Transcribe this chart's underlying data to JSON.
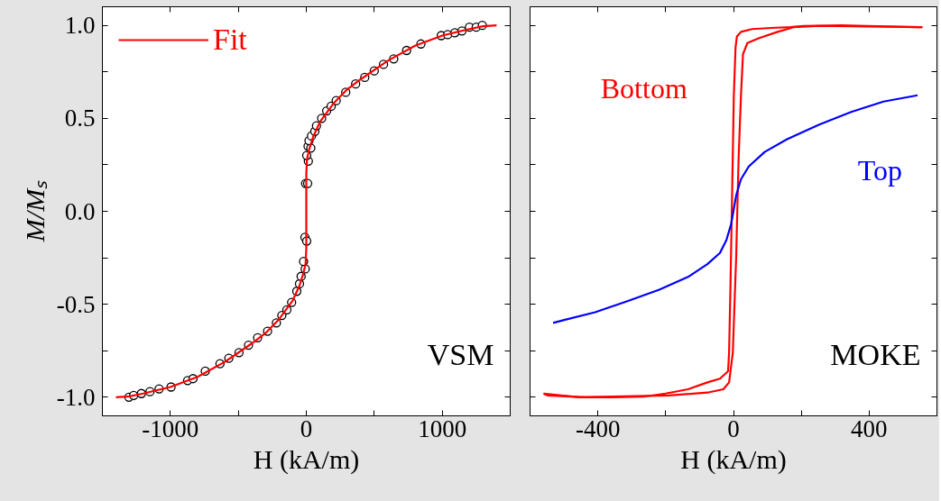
{
  "chart_data": [
    {
      "type": "scatter",
      "xlabel": "H (kA/m)",
      "ylabel": "M/Mₛ",
      "xlim": [
        -1500,
        1500
      ],
      "ylim": [
        -1.1,
        1.1
      ],
      "xticks": [
        -1000,
        {
          "value": -500,
          "label": null
        },
        0,
        {
          "value": 500,
          "label": null
        },
        1000
      ],
      "yticks": [
        {
          "value": -1.0,
          "label": "-1.0"
        },
        {
          "value": -0.75,
          "label": null
        },
        -0.5,
        {
          "value": -0.25,
          "label": null
        },
        {
          "value": 0.0,
          "label": "0.0"
        },
        {
          "value": 0.25,
          "label": null
        },
        0.5,
        {
          "value": 0.75,
          "label": null
        },
        {
          "value": 1.0,
          "label": "1.0"
        }
      ],
      "legend": "top left",
      "annotations": [
        "VSM"
      ],
      "series": [
        {
          "type": "scatter",
          "marker": "circle",
          "color": "#000000",
          "x": [
            -1305,
            -1270,
            -1213,
            -1150,
            -1083,
            -995,
            -873,
            -833,
            -743,
            -635,
            -570,
            -495,
            -425,
            -358,
            -285,
            -220,
            -180,
            -143,
            -108,
            -70,
            -50,
            -38,
            -8,
            -20,
            -10,
            3,
            -5,
            10,
            15,
            3,
            13,
            33,
            20,
            38,
            63,
            75,
            113,
            150,
            183,
            220,
            290,
            363,
            430,
            500,
            568,
            643,
            738,
            843,
            993,
            1040,
            1093,
            1145,
            1200,
            1250,
            1295
          ],
          "values": [
            -1.0,
            -0.99,
            -0.98,
            -0.97,
            -0.955,
            -0.945,
            -0.91,
            -0.9,
            -0.86,
            -0.82,
            -0.79,
            -0.76,
            -0.72,
            -0.68,
            -0.645,
            -0.6,
            -0.56,
            -0.53,
            -0.49,
            -0.43,
            -0.39,
            -0.35,
            -0.31,
            -0.27,
            -0.14,
            -0.16,
            0.15,
            0.15,
            0.27,
            0.3,
            0.35,
            0.34,
            0.38,
            0.405,
            0.43,
            0.46,
            0.5,
            0.54,
            0.565,
            0.595,
            0.64,
            0.685,
            0.72,
            0.755,
            0.79,
            0.82,
            0.865,
            0.9,
            0.945,
            0.95,
            0.96,
            0.97,
            0.99,
            0.99,
            1.0
          ]
        },
        {
          "type": "line",
          "name": "Fit",
          "color": "#ff0000",
          "x": [
            -1400,
            -1300,
            -1200,
            -1000,
            -800,
            -600,
            -400,
            -300,
            -200,
            -100,
            -50,
            -20,
            -5,
            0,
            0,
            5,
            20,
            50,
            100,
            200,
            300,
            400,
            600,
            800,
            1000,
            1200,
            1300,
            1400
          ],
          "values": [
            -1.0,
            -0.995,
            -0.98,
            -0.945,
            -0.89,
            -0.81,
            -0.71,
            -0.655,
            -0.58,
            -0.48,
            -0.4,
            -0.33,
            -0.28,
            -0.2,
            0.2,
            0.28,
            0.33,
            0.4,
            0.48,
            0.58,
            0.655,
            0.71,
            0.81,
            0.89,
            0.945,
            0.98,
            0.995,
            1.0
          ]
        }
      ]
    },
    {
      "type": "line",
      "xlabel": "H (kA/m)",
      "xlim": [
        -600,
        600
      ],
      "ylim": [
        -1.1,
        1.1
      ],
      "xticks": [
        -400,
        {
          "value": -200,
          "label": null
        },
        0,
        {
          "value": 200,
          "label": null
        },
        400
      ],
      "yticks": [
        {
          "value": -1.0,
          "label": null
        },
        {
          "value": -0.75,
          "label": null
        },
        {
          "value": -0.5,
          "label": null
        },
        {
          "value": -0.25,
          "label": null
        },
        {
          "value": 0.0,
          "label": null
        },
        {
          "value": 0.25,
          "label": null
        },
        {
          "value": 0.5,
          "label": null
        },
        {
          "value": 0.75,
          "label": null
        },
        {
          "value": 1.0,
          "label": null
        }
      ],
      "tick_labels": "x",
      "annotations": [
        "MOKE"
      ],
      "series": [
        {
          "name": "Bottom",
          "color": "#ff0000",
          "x": [
            557,
            394,
            319,
            206,
            168,
            111,
            55,
            22,
            10,
            6,
            1,
            -4,
            -9,
            -13,
            -16,
            -40,
            -77,
            -134,
            -200,
            -266,
            -360,
            -436,
            -549,
            -560
          ],
          "values": [
            0.99,
            0.997,
            1.0,
            0.997,
            0.99,
            0.986,
            0.98,
            0.965,
            0.94,
            0.88,
            0.62,
            0.1,
            -0.41,
            -0.76,
            -0.86,
            -0.9,
            -0.92,
            -0.957,
            -0.98,
            -0.997,
            -1.0,
            -1.0,
            -0.99,
            -0.98
          ]
        },
        {
          "color": "#ff0000",
          "x": [
            -560,
            -455,
            -191,
            -77,
            -30,
            -13,
            -2,
            8,
            15,
            22,
            28,
            41,
            74,
            130,
            177,
            253,
            557
          ],
          "values": [
            -0.98,
            -1.0,
            -0.99,
            -0.975,
            -0.957,
            -0.92,
            -0.76,
            -0.24,
            0.28,
            0.62,
            0.845,
            0.905,
            0.93,
            0.965,
            0.99,
            0.997,
            0.99
          ]
        },
        {
          "name": "Top",
          "color": "#0000ff",
          "x": [
            -532,
            -502,
            -408,
            -313,
            -219,
            -134,
            -77,
            -40,
            -21,
            -7,
            8,
            22,
            45,
            92,
            158,
            253,
            347,
            442,
            543
          ],
          "values": [
            -0.6,
            -0.586,
            -0.543,
            -0.483,
            -0.422,
            -0.353,
            -0.284,
            -0.224,
            -0.155,
            -0.069,
            0.086,
            0.172,
            0.241,
            0.319,
            0.388,
            0.466,
            0.534,
            0.59,
            0.624
          ]
        }
      ]
    }
  ]
}
